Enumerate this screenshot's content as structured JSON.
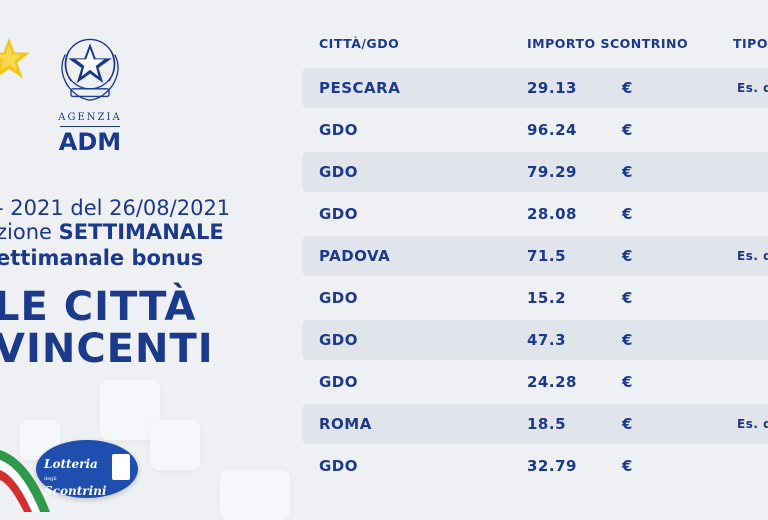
{
  "left_panel": {
    "agency_top": "AGENZIA",
    "agency_name": "ADM",
    "line1": "- 2021 del 26/08/2021",
    "line2_prefix": "zione ",
    "line2_bold": "SETTIMANALE",
    "line3": "ettimanale bonus",
    "title_line1": "LE CITTÀ",
    "title_line2": "VINCENTI",
    "lottery_logo": {
      "line1": "Lotteria",
      "small": "degli",
      "line2": "Scontrini"
    }
  },
  "table": {
    "headers": {
      "city": "CITTÀ/GDO",
      "amount": "IMPORTO SCONTRINO",
      "type": "TIPO"
    },
    "rows": [
      {
        "city": "PESCARA",
        "amount": "29.13",
        "currency": "€",
        "type": "Es. d"
      },
      {
        "city": "GDO",
        "amount": "96.24",
        "currency": "€",
        "type": ""
      },
      {
        "city": "GDO",
        "amount": "79.29",
        "currency": "€",
        "type": ""
      },
      {
        "city": "GDO",
        "amount": "28.08",
        "currency": "€",
        "type": ""
      },
      {
        "city": "PADOVA",
        "amount": "71.5",
        "currency": "€",
        "type": "Es. d"
      },
      {
        "city": "GDO",
        "amount": "15.2",
        "currency": "€",
        "type": ""
      },
      {
        "city": "GDO",
        "amount": "47.3",
        "currency": "€",
        "type": ""
      },
      {
        "city": "GDO",
        "amount": "24.28",
        "currency": "€",
        "type": ""
      },
      {
        "city": "ROMA",
        "amount": "18.5",
        "currency": "€",
        "type": "Es. d"
      },
      {
        "city": "GDO",
        "amount": "32.79",
        "currency": "€",
        "type": ""
      }
    ]
  },
  "colors": {
    "primary": "#1a3a8c",
    "row_shade": "#e1e4ea",
    "background": "#eef0f4",
    "star": "#f5c518"
  },
  "icons": {
    "star": "star-icon",
    "emblem": "italian-republic-emblem-icon",
    "flag": "italian-flag-ribbon-icon",
    "logo": "lottery-logo-icon"
  }
}
